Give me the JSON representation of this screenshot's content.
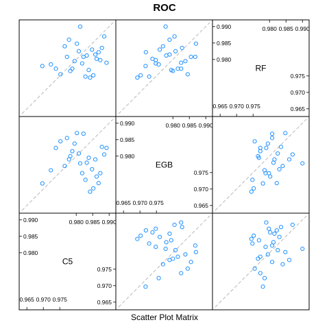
{
  "chart_data": {
    "type": "scatter",
    "title": "ROC",
    "xlabel": "Scatter Plot Matrix",
    "variables": [
      "RF",
      "EGB",
      "C5"
    ],
    "axis_range": [
      0.9635,
      0.9912
    ],
    "ticks_low": [
      "0.965",
      "0.970",
      "0.975"
    ],
    "ticks_high": [
      "0.980",
      "0.985",
      "0.990"
    ],
    "reference_line": "y = x",
    "point_color": "#1E90FF",
    "grid": false,
    "observations": [
      {
        "RF": 0.978,
        "EGB": 0.9717,
        "C5": 0.9697
      },
      {
        "RF": 0.9785,
        "EGB": 0.9757,
        "C5": 0.9723
      },
      {
        "RF": 0.9772,
        "EGB": 0.9825,
        "C5": 0.9738
      },
      {
        "RF": 0.9755,
        "EGB": 0.9845,
        "C5": 0.9752
      },
      {
        "RF": 0.984,
        "EGB": 0.977,
        "C5": 0.9765
      },
      {
        "RF": 0.9808,
        "EGB": 0.9855,
        "C5": 0.9772
      },
      {
        "RF": 0.986,
        "EGB": 0.979,
        "C5": 0.9778
      },
      {
        "RF": 0.9765,
        "EGB": 0.98,
        "C5": 0.9782
      },
      {
        "RF": 0.9772,
        "EGB": 0.9815,
        "C5": 0.9788
      },
      {
        "RF": 0.9795,
        "EGB": 0.9838,
        "C5": 0.9795
      },
      {
        "RF": 0.9848,
        "EGB": 0.987,
        "C5": 0.9802
      },
      {
        "RF": 0.9825,
        "EGB": 0.9808,
        "C5": 0.9808
      },
      {
        "RF": 0.99,
        "EGB": 0.9778,
        "C5": 0.9812
      },
      {
        "RF": 0.9788,
        "EGB": 0.9748,
        "C5": 0.9818
      },
      {
        "RF": 0.9808,
        "EGB": 0.9868,
        "C5": 0.9822
      },
      {
        "RF": 0.9748,
        "EGB": 0.9728,
        "C5": 0.9828
      },
      {
        "RF": 0.9812,
        "EGB": 0.978,
        "C5": 0.9832
      },
      {
        "RF": 0.9768,
        "EGB": 0.9795,
        "C5": 0.9838
      },
      {
        "RF": 0.9745,
        "EGB": 0.9692,
        "C5": 0.9842
      },
      {
        "RF": 0.983,
        "EGB": 0.976,
        "C5": 0.9848
      },
      {
        "RF": 0.9752,
        "EGB": 0.9702,
        "C5": 0.9852
      },
      {
        "RF": 0.9815,
        "EGB": 0.979,
        "C5": 0.9858
      },
      {
        "RF": 0.9802,
        "EGB": 0.9738,
        "C5": 0.9862
      },
      {
        "RF": 0.9822,
        "EGB": 0.9718,
        "C5": 0.9868
      },
      {
        "RF": 0.9798,
        "EGB": 0.9748,
        "C5": 0.9873
      },
      {
        "RF": 0.9835,
        "EGB": 0.9828,
        "C5": 0.9878
      },
      {
        "RF": 0.987,
        "EGB": 0.9805,
        "C5": 0.9885
      },
      {
        "RF": 0.979,
        "EGB": 0.9825,
        "C5": 0.9892
      }
    ]
  }
}
